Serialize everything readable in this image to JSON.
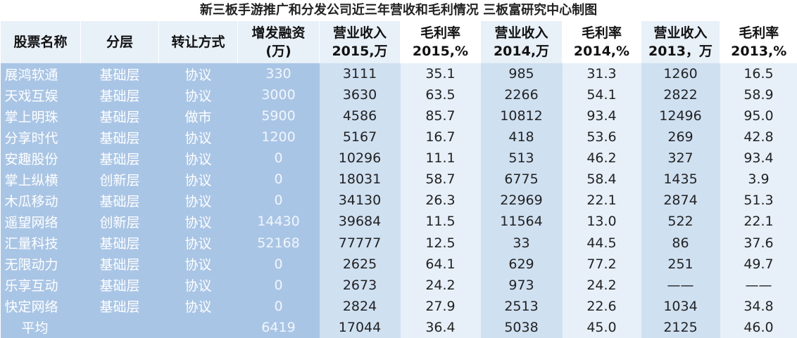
{
  "title": "新三板手游推广和分发公司近三年营收和毛利情况 三板富研究中心制图",
  "headers": [
    {
      "l1": "股票名称",
      "l2": ""
    },
    {
      "l1": "分层",
      "l2": ""
    },
    {
      "l1": "转让方式",
      "l2": ""
    },
    {
      "l1": "增发融资",
      "l2": "(万)"
    },
    {
      "l1": "营业收入",
      "l2": "2015,万"
    },
    {
      "l1": "毛利率",
      "l2": "2015,%"
    },
    {
      "l1": "营业收入",
      "l2": "2014,万"
    },
    {
      "l1": "毛利率",
      "l2": "2014,%"
    },
    {
      "l1": "营业收入",
      "l2": "2013，万"
    },
    {
      "l1": "毛利率",
      "l2": "2013,%"
    }
  ],
  "rows": [
    [
      "展鸿软通",
      "基础层",
      "协议",
      "330",
      "3111",
      "35.1",
      "985",
      "31.3",
      "1260",
      "16.5"
    ],
    [
      "天戏互娱",
      "基础层",
      "协议",
      "3000",
      "3630",
      "63.5",
      "2266",
      "54.1",
      "2822",
      "58.9"
    ],
    [
      "掌上明珠",
      "基础层",
      "做市",
      "5900",
      "4586",
      "85.7",
      "10812",
      "93.4",
      "12496",
      "95.0"
    ],
    [
      "分享时代",
      "基础层",
      "协议",
      "1200",
      "5167",
      "16.7",
      "418",
      "53.6",
      "269",
      "42.8"
    ],
    [
      "安趣股份",
      "基础层",
      "协议",
      "0",
      "10296",
      "11.1",
      "513",
      "46.2",
      "327",
      "93.4"
    ],
    [
      "掌上纵横",
      "创新层",
      "协议",
      "0",
      "18031",
      "58.7",
      "6775",
      "58.4",
      "1435",
      "3.9"
    ],
    [
      "木瓜移动",
      "基础层",
      "协议",
      "0",
      "34130",
      "26.3",
      "22969",
      "22.1",
      "2874",
      "51.3"
    ],
    [
      "遥望网络",
      "创新层",
      "协议",
      "14430",
      "39684",
      "11.5",
      "11564",
      "13.0",
      "522",
      "22.1"
    ],
    [
      "汇量科技",
      "基础层",
      "协议",
      "52168",
      "77777",
      "12.5",
      "33",
      "44.5",
      "86",
      "37.6"
    ],
    [
      "无限动力",
      "基础层",
      "协议",
      "0",
      "2625",
      "64.1",
      "629",
      "77.2",
      "251",
      "49.7"
    ],
    [
      "乐享互动",
      "基础层",
      "协议",
      "0",
      "2673",
      "24.2",
      "973",
      "24.2",
      "——",
      "——"
    ],
    [
      "快定网络",
      "基础层",
      "协议",
      "0",
      "2824",
      "27.9",
      "2513",
      "22.6",
      "1034",
      "34.8"
    ],
    [
      "平均",
      "",
      "",
      "6419",
      "17044",
      "36.4",
      "5038",
      "45.0",
      "2125",
      "46.0"
    ]
  ]
}
